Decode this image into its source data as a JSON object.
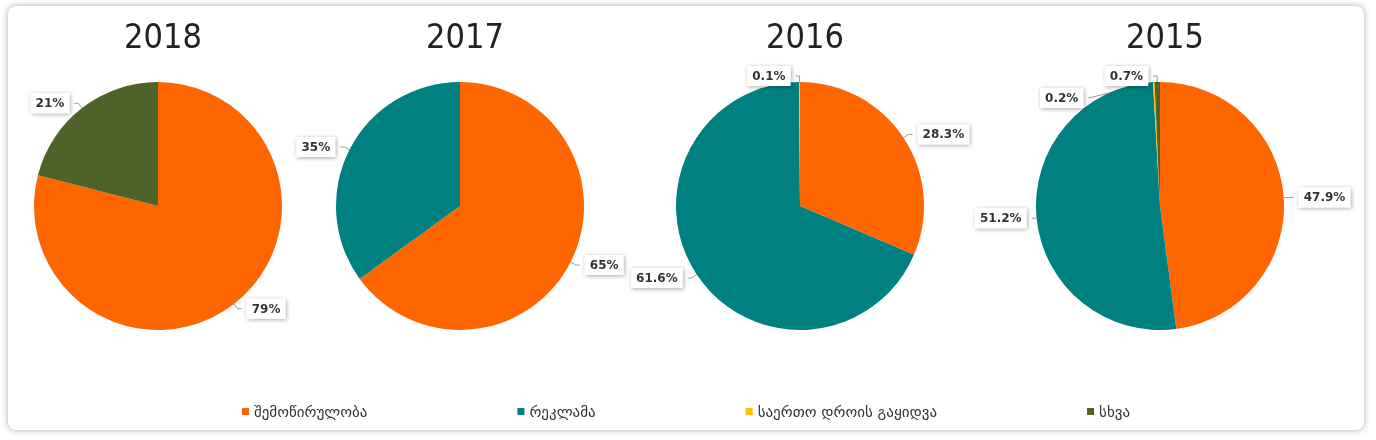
{
  "chart_data": [
    {
      "type": "pie",
      "title": "2018",
      "categories": [
        "შემოწირულობა",
        "რეკლამა",
        "საერთო დროის გაყიდვა",
        "სხვა"
      ],
      "values": [
        79,
        null,
        null,
        21
      ],
      "colors": [
        "#ff6600",
        "#008080",
        "#ffc000",
        "#4f6228"
      ],
      "value_labels": [
        "79%",
        null,
        null,
        "21%"
      ],
      "legend": "bottom"
    },
    {
      "type": "pie",
      "title": "2017",
      "categories": [
        null,
        null
      ],
      "values": [
        65,
        35
      ],
      "colors": [
        "#ff6600",
        "#008080"
      ],
      "value_labels": [
        "65%",
        "35%"
      ]
    },
    {
      "type": "pie",
      "title": "2016",
      "categories": [
        null,
        null,
        null
      ],
      "values": [
        28.3,
        61.6,
        0.1
      ],
      "colors": [
        "#ff6600",
        "#008080",
        "#ffc000"
      ],
      "value_labels": [
        "28.3%",
        "61.6%",
        "0.1%"
      ]
    },
    {
      "type": "pie",
      "title": "2015",
      "categories": [
        null,
        null,
        null,
        null
      ],
      "values": [
        47.9,
        51.2,
        0.2,
        0.7
      ],
      "colors": [
        "#ff6600",
        "#008080",
        "#ffc000",
        "#4f6228"
      ],
      "value_labels": [
        "47.9%",
        "51.2%",
        "0.2%",
        "0.7%"
      ]
    }
  ]
}
